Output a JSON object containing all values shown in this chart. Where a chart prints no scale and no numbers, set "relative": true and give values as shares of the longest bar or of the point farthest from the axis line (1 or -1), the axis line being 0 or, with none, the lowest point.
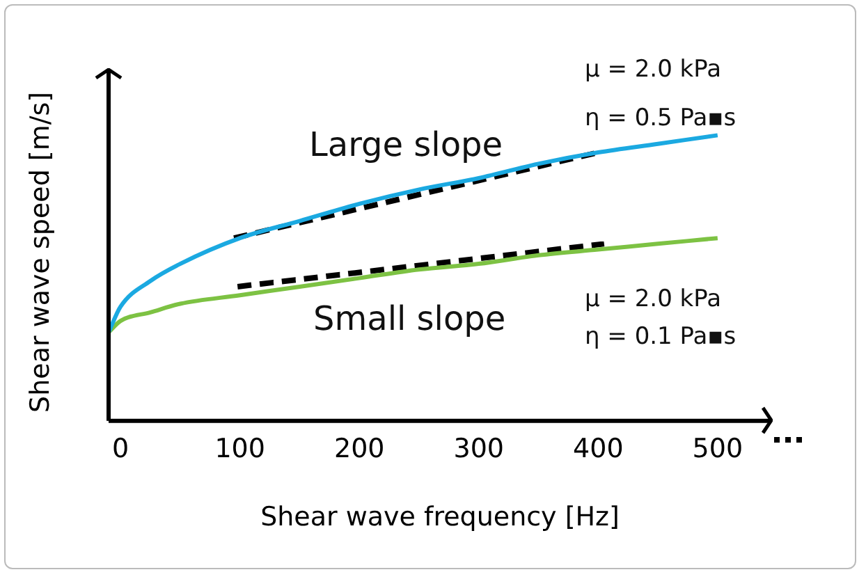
{
  "chart_data": {
    "type": "line",
    "relative": true,
    "xlabel": "Shear wave frequency [Hz]",
    "ylabel": "Shear wave speed [m/s]",
    "xlim": [
      -10,
      545
    ],
    "xticks": [
      0,
      100,
      200,
      300,
      400,
      500
    ],
    "grid": false,
    "legend": false,
    "marker": "none",
    "annotations": [
      "Large slope",
      "Small slope",
      "μ = 2.0 kPa",
      "η = 0.5 Pa▪s",
      "μ = 2.0 kPa",
      "η = 0.1 Pa▪s"
    ],
    "series": [
      {
        "color": "#1ba9e1",
        "x": [
          -10,
          0,
          25,
          50,
          100,
          150,
          200,
          250,
          300,
          350,
          400,
          450,
          500
        ],
        "values": [
          0.31,
          0.4,
          0.49,
          0.55,
          0.64,
          0.7,
          0.76,
          0.81,
          0.85,
          0.9,
          0.94,
          0.97,
          1
        ]
      },
      {
        "color": "#7dc243",
        "x": [
          -10,
          0,
          25,
          50,
          100,
          150,
          200,
          250,
          300,
          350,
          400,
          450,
          500
        ],
        "values": [
          0.31,
          0.35,
          0.38,
          0.41,
          0.44,
          0.47,
          0.5,
          0.53,
          0.55,
          0.58,
          0.6,
          0.62,
          0.64
        ]
      },
      {
        "color": "#000000",
        "line_style": "dashed",
        "x": [
          95,
          400
        ],
        "values": [
          0.64,
          0.94
        ]
      },
      {
        "color": "#000000",
        "line_style": "dashed",
        "x": [
          98,
          405
        ],
        "values": [
          0.47,
          0.62
        ]
      }
    ]
  }
}
